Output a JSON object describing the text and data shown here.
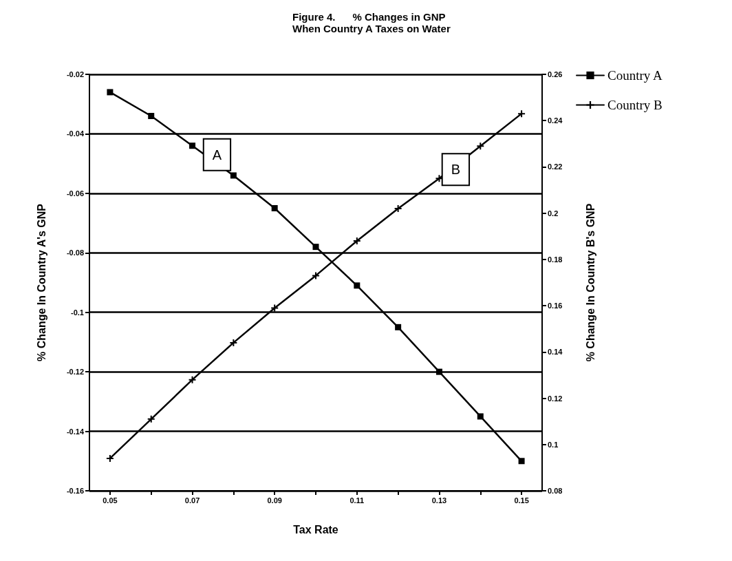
{
  "chart_data": {
    "type": "line",
    "title": "Figure 4.      % Changes in GNP",
    "subtitle": "When Country A Taxes on Water",
    "xlabel": "Tax Rate",
    "ylabel": "% Change In Country A's GNP",
    "y2label": "% Change In Country B's GNP",
    "x": [
      0.05,
      0.06,
      0.07,
      0.08,
      0.09,
      0.1,
      0.11,
      0.12,
      0.13,
      0.14,
      0.15
    ],
    "series": [
      {
        "name": "Country A",
        "color": "#000000",
        "marker": "square",
        "values": [
          -0.026,
          -0.034,
          -0.044,
          -0.054,
          -0.065,
          -0.078,
          -0.091,
          -0.105,
          -0.12,
          -0.135,
          -0.15
        ]
      },
      {
        "name": "Country B",
        "color": "#000000",
        "marker": "cross",
        "axis": "y2",
        "values": [
          0.094,
          0.111,
          0.128,
          0.144,
          0.159,
          0.173,
          0.188,
          0.202,
          0.215,
          0.229,
          0.243
        ]
      }
    ],
    "xlim": [
      0.045,
      0.155
    ],
    "xticks": [
      0.05,
      {
        "value": 0.06,
        "label": null
      },
      0.07,
      {
        "value": 0.08,
        "label": null
      },
      0.09,
      {
        "value": 0.1,
        "label": null
      },
      0.11,
      {
        "value": 0.12,
        "label": null
      },
      0.13,
      {
        "value": 0.14,
        "label": null
      },
      0.15
    ],
    "ylim": [
      -0.16,
      -0.02
    ],
    "yticks": [
      -0.16,
      -0.14,
      -0.12,
      -0.1,
      -0.08,
      -0.06,
      -0.04,
      -0.02
    ],
    "y2lim": [
      0.08,
      0.26
    ],
    "y2ticks": [
      0.08,
      0.1,
      0.12,
      0.14,
      0.16,
      0.18,
      0.2,
      0.22,
      0.24,
      0.26
    ],
    "annotations": [
      {
        "text": "A",
        "x": 0.076,
        "y": -0.047
      },
      {
        "text": "B",
        "x": 0.134,
        "y": -0.052
      }
    ],
    "grid": "y",
    "legend": "top right",
    "line_style": "solid"
  }
}
